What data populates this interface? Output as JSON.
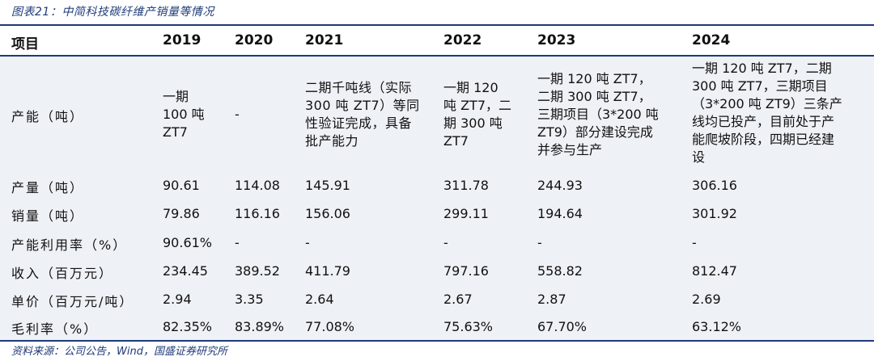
{
  "caption": "图表21：中简科技碳纤维产销量等情况",
  "source": "资料来源：公司公告，Wind，国盛证券研究所",
  "header": {
    "item": "项目",
    "y2019": "2019",
    "y2020": "2020",
    "y2021": "2021",
    "y2022": "2022",
    "y2023": "2023",
    "y2024": "2024"
  },
  "rows": {
    "capacity": {
      "label": "产能（吨）",
      "y2019": "一期\n100 吨\nZT7",
      "y2020": "-",
      "y2021": "二期千吨线（实际\n300 吨 ZT7）等同\n性验证完成，具备\n批产能力",
      "y2022": "一期 120\n吨 ZT7，二\n期 300 吨\nZT7",
      "y2023": "一期 120 吨 ZT7，\n二期 300 吨 ZT7，\n三期项目（3*200 吨\nZT9）部分建设完成\n并参与生产",
      "y2024": "一期 120 吨 ZT7，二期\n300 吨 ZT7，三期项目\n（3*200 吨 ZT9）三条产\n线均已投产，目前处于产\n能爬坡阶段，四期已经建\n设"
    },
    "output": {
      "label": "产量（吨）",
      "y2019": "90.61",
      "y2020": "114.08",
      "y2021": "145.91",
      "y2022": "311.78",
      "y2023": "244.93",
      "y2024": "306.16"
    },
    "sales": {
      "label": "销量（吨）",
      "y2019": "79.86",
      "y2020": "116.16",
      "y2021": "156.06",
      "y2022": "299.11",
      "y2023": "194.64",
      "y2024": "301.92"
    },
    "utilization": {
      "label": "产能利用率（%）",
      "y2019": "90.61%",
      "y2020": "-",
      "y2021": "-",
      "y2022": "-",
      "y2023": "-",
      "y2024": "-"
    },
    "revenue": {
      "label": "收入（百万元）",
      "y2019": "234.45",
      "y2020": "389.52",
      "y2021": "411.79",
      "y2022": "797.16",
      "y2023": "558.82",
      "y2024": "812.47"
    },
    "price": {
      "label": "单价（百万元/吨）",
      "y2019": "2.94",
      "y2020": "3.35",
      "y2021": "2.64",
      "y2022": "2.67",
      "y2023": "2.87",
      "y2024": "2.69"
    },
    "margin": {
      "label": "毛利率（%）",
      "y2019": "82.35%",
      "y2020": "83.89%",
      "y2021": "77.08%",
      "y2022": "75.63%",
      "y2023": "67.70%",
      "y2024": "63.12%"
    }
  }
}
